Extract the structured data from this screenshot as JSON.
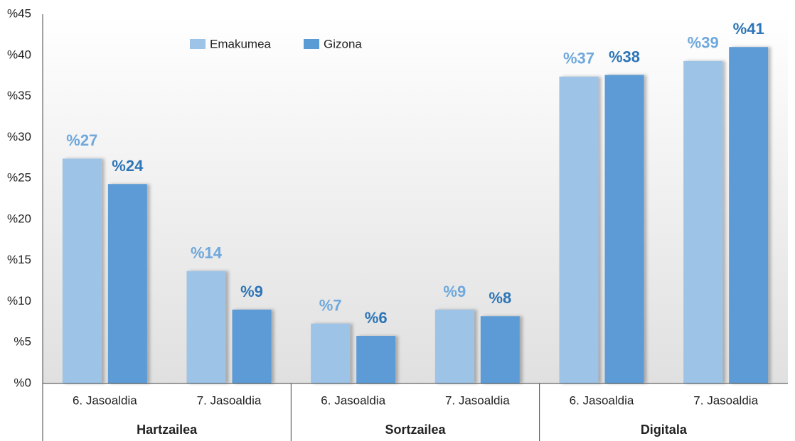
{
  "chart_data": {
    "type": "bar",
    "categories": [
      "6. Jasoaldia",
      "7. Jasoaldia",
      "6. Jasoaldia",
      "7. Jasoaldia",
      "6. Jasoaldia",
      "7. Jasoaldia"
    ],
    "groups": [
      "Hartzailea",
      "Sortzailea",
      "Digitala"
    ],
    "series": [
      {
        "name": "Emakumea",
        "color": "#9dc3e6",
        "label_color": "#6fa8dc",
        "values": [
          27.4,
          13.7,
          7.3,
          9.0,
          37.4,
          39.3
        ],
        "value_labels": [
          "%27",
          "%14",
          "%7",
          "%9",
          "%37",
          "%39"
        ]
      },
      {
        "name": "Gizona",
        "color": "#5b9bd5",
        "label_color": "#2e75b6",
        "values": [
          24.3,
          9.0,
          5.8,
          8.2,
          37.6,
          41.0
        ],
        "value_labels": [
          "%24",
          "%9",
          "%6",
          "%8",
          "%38",
          "%41"
        ]
      }
    ],
    "ylim": [
      0,
      45
    ],
    "yticks": [
      {
        "value": 0,
        "label": "%0"
      },
      {
        "value": 5,
        "label": "%5"
      },
      {
        "value": 10,
        "label": "%10"
      },
      {
        "value": 15,
        "label": "%15"
      },
      {
        "value": 20,
        "label": "%20"
      },
      {
        "value": 25,
        "label": "%25"
      },
      {
        "value": 30,
        "label": "%30"
      },
      {
        "value": 35,
        "label": "%35"
      },
      {
        "value": 40,
        "label": "%40"
      },
      {
        "value": 45,
        "label": "%45"
      }
    ],
    "legend": "top-left"
  }
}
